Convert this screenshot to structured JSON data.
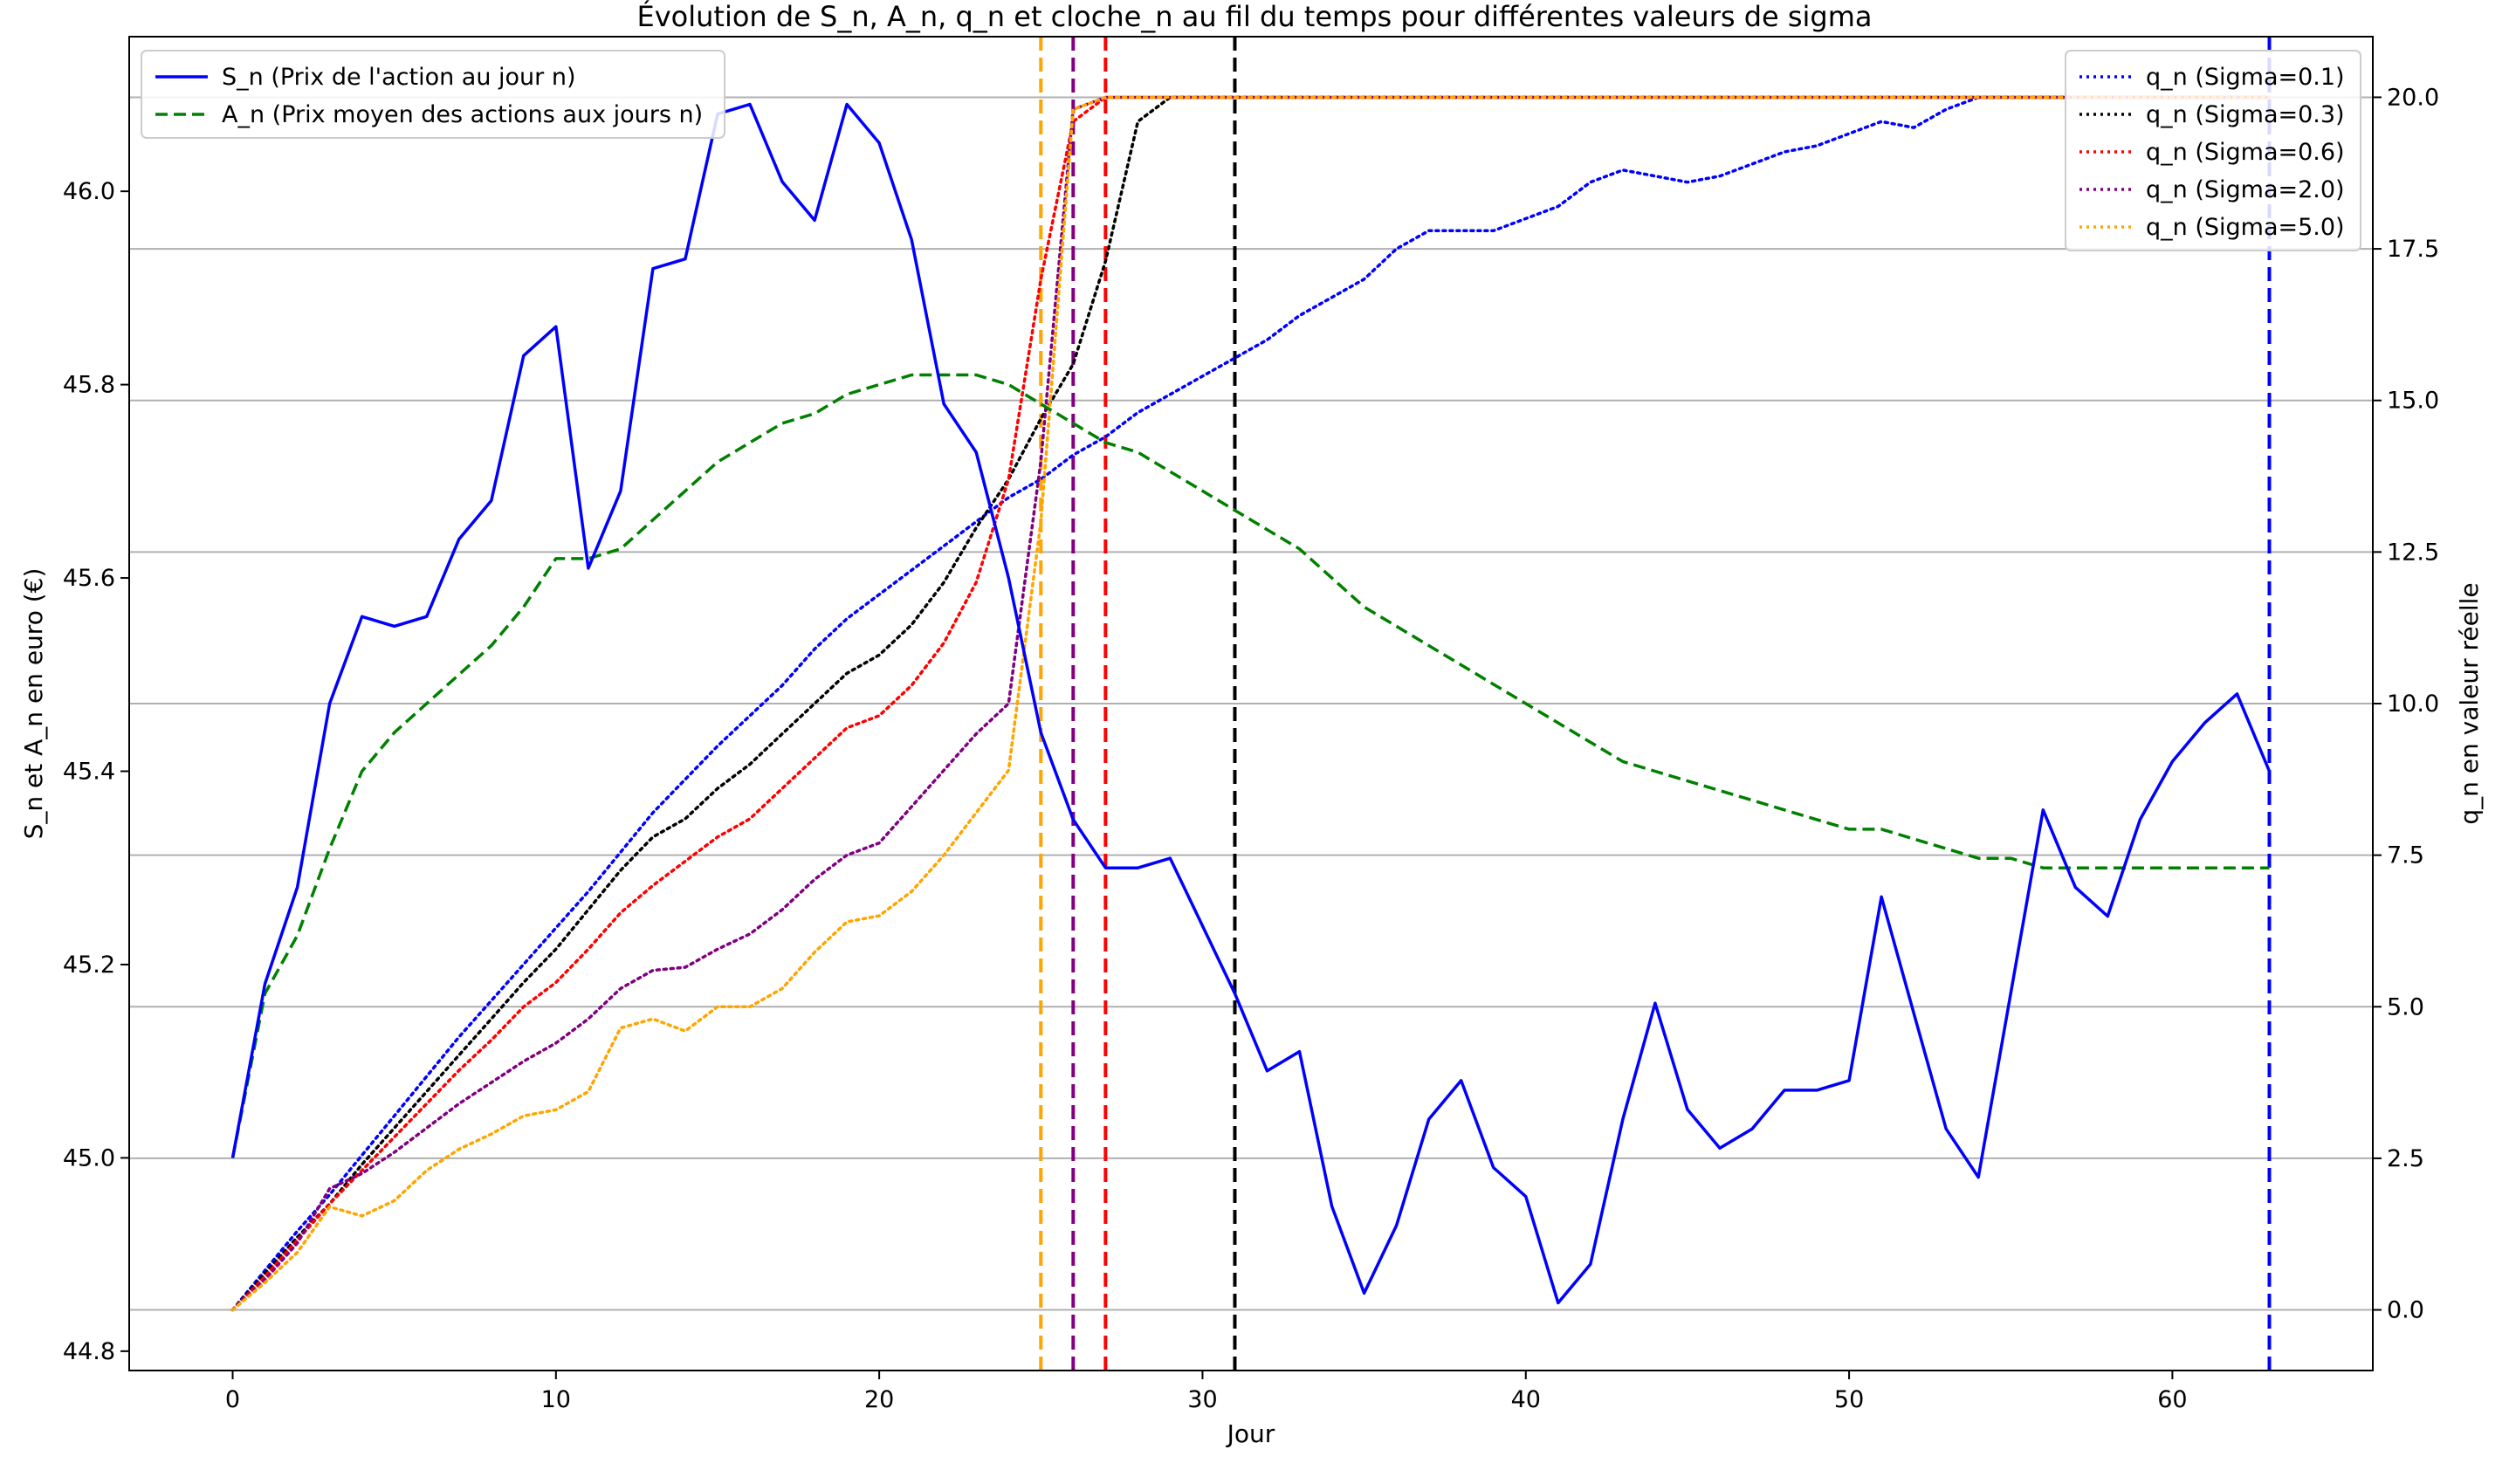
{
  "chart_data": {
    "type": "line",
    "title": "Évolution de S_n, A_n, q_n et cloche_n au fil du temps pour différentes valeurs de sigma",
    "xlabel": "Jour",
    "ylabel_left": "S_n et A_n en euro (€)",
    "ylabel_right": "q_n en valeur réelle",
    "xlim": [
      -3.2,
      66.2
    ],
    "ylim_left": [
      44.78,
      46.16
    ],
    "ylim_right": [
      -1.0,
      21.0
    ],
    "x_ticks": [
      0,
      10,
      20,
      30,
      40,
      50,
      60
    ],
    "y_ticks_left": [
      44.8,
      45.0,
      45.2,
      45.4,
      45.6,
      45.8,
      46.0
    ],
    "y_ticks_right": [
      0.0,
      2.5,
      5.0,
      7.5,
      10.0,
      12.5,
      15.0,
      17.5,
      20.0
    ],
    "grid": "horizontal lines at right-axis ticks",
    "legend_left_placement": "top-left",
    "legend_right_placement": "top-right",
    "colors": {
      "S_n": "#0000ff",
      "A_n": "#008000",
      "sigma_0_1": "#0000ff",
      "sigma_0_3": "#000000",
      "sigma_0_6": "#ff0000",
      "sigma_2_0": "#800080",
      "sigma_5_0": "#ffa500",
      "right_axis": "#ff0000",
      "grid": "#b0b0b0"
    },
    "legend_left": [
      {
        "label": "S_n (Prix de l'action au jour n)",
        "series": "S_n"
      },
      {
        "label": "A_n (Prix moyen des actions aux jours n)",
        "series": "A_n"
      }
    ],
    "legend_right": [
      {
        "label": "q_n (Sigma=0.1)",
        "series": "sigma_0_1"
      },
      {
        "label": "q_n (Sigma=0.3)",
        "series": "sigma_0_3"
      },
      {
        "label": "q_n (Sigma=0.6)",
        "series": "sigma_0_6"
      },
      {
        "label": "q_n (Sigma=2.0)",
        "series": "sigma_2_0"
      },
      {
        "label": "q_n (Sigma=5.0)",
        "series": "sigma_5_0"
      }
    ],
    "left_series": [
      {
        "key": "S_n",
        "axis": "left",
        "dash": "solid",
        "values": [
          45.0,
          45.18,
          45.28,
          45.47,
          45.56,
          45.55,
          45.56,
          45.64,
          45.68,
          45.83,
          45.86,
          45.61,
          45.69,
          45.92,
          45.93,
          46.08,
          46.09,
          46.01,
          45.97,
          46.09,
          46.05,
          45.95,
          45.78,
          45.73,
          45.6,
          45.44,
          45.35,
          45.3,
          45.3,
          45.31,
          45.24,
          45.17,
          45.09,
          45.11,
          44.95,
          44.86,
          44.93,
          45.04,
          45.08,
          44.99,
          44.96,
          44.85,
          44.89,
          45.04,
          45.16,
          45.05,
          45.01,
          45.03,
          45.07,
          45.07,
          45.08,
          45.27,
          45.15,
          45.03,
          44.98,
          45.17,
          45.36,
          45.28,
          45.25,
          45.35,
          45.41,
          45.45,
          45.48,
          45.4
        ]
      },
      {
        "key": "A_n",
        "axis": "left",
        "dash": "dashed",
        "values": [
          45.0,
          45.17,
          45.23,
          45.32,
          45.4,
          45.44,
          45.47,
          45.5,
          45.53,
          45.57,
          45.62,
          45.62,
          45.63,
          45.66,
          45.69,
          45.72,
          45.74,
          45.76,
          45.77,
          45.79,
          45.8,
          45.81,
          45.81,
          45.81,
          45.8,
          45.78,
          45.76,
          45.74,
          45.73,
          45.71,
          45.69,
          45.67,
          45.65,
          45.63,
          45.6,
          45.57,
          45.55,
          45.53,
          45.51,
          45.49,
          45.47,
          45.45,
          45.43,
          45.41,
          45.4,
          45.39,
          45.38,
          45.37,
          45.36,
          45.35,
          45.34,
          45.34,
          45.33,
          45.32,
          45.31,
          45.31,
          45.3,
          45.3,
          45.3,
          45.3,
          45.3,
          45.3,
          45.3,
          45.3
        ]
      },
      {
        "key": "sigma_0_1",
        "axis": "right",
        "dash": "dotted",
        "values": [
          0.0,
          0.65,
          1.3,
          1.9,
          2.55,
          3.2,
          3.85,
          4.5,
          5.1,
          5.7,
          6.3,
          6.9,
          7.55,
          8.2,
          8.75,
          9.3,
          9.8,
          10.3,
          10.9,
          11.4,
          11.8,
          12.2,
          12.6,
          13.0,
          13.4,
          13.7,
          14.1,
          14.4,
          14.8,
          15.1,
          15.4,
          15.7,
          16.0,
          16.4,
          16.7,
          17.0,
          17.5,
          17.8,
          17.8,
          17.8,
          18.0,
          18.2,
          18.6,
          18.8,
          18.7,
          18.6,
          18.7,
          18.9,
          19.1,
          19.2,
          19.4,
          19.6,
          19.5,
          19.8,
          20.0,
          20.0,
          20.0,
          20.0,
          20.0,
          20.0,
          20.0,
          20.0,
          20.0,
          20.0
        ]
      },
      {
        "key": "sigma_0_3",
        "axis": "right",
        "dash": "dotted",
        "values": [
          0.0,
          0.6,
          1.2,
          1.75,
          2.4,
          3.0,
          3.6,
          4.2,
          4.8,
          5.4,
          5.95,
          6.6,
          7.25,
          7.8,
          8.1,
          8.6,
          9.0,
          9.5,
          10.0,
          10.5,
          10.8,
          11.3,
          12.0,
          12.9,
          13.7,
          14.7,
          15.6,
          17.3,
          19.6,
          20.0,
          20.0,
          20.0,
          20.0,
          20.0,
          20.0,
          20.0,
          20.0,
          20.0,
          20.0,
          20.0,
          20.0,
          20.0,
          20.0,
          20.0,
          20.0,
          20.0,
          20.0,
          20.0,
          20.0,
          20.0,
          20.0,
          20.0,
          20.0,
          20.0,
          20.0,
          20.0,
          20.0,
          20.0,
          20.0,
          20.0,
          20.0,
          20.0,
          20.0,
          20.0
        ]
      },
      {
        "key": "sigma_0_6",
        "axis": "right",
        "dash": "dotted",
        "values": [
          0.0,
          0.55,
          1.15,
          1.75,
          2.3,
          2.85,
          3.4,
          3.95,
          4.45,
          5.0,
          5.4,
          5.95,
          6.55,
          7.0,
          7.4,
          7.8,
          8.1,
          8.6,
          9.1,
          9.6,
          9.8,
          10.3,
          11.0,
          12.0,
          13.7,
          17.0,
          19.6,
          20.0,
          20.0,
          20.0,
          20.0,
          20.0,
          20.0,
          20.0,
          20.0,
          20.0,
          20.0,
          20.0,
          20.0,
          20.0,
          20.0,
          20.0,
          20.0,
          20.0,
          20.0,
          20.0,
          20.0,
          20.0,
          20.0,
          20.0,
          20.0,
          20.0,
          20.0,
          20.0,
          20.0,
          20.0,
          20.0,
          20.0,
          20.0,
          20.0,
          20.0,
          20.0,
          20.0,
          20.0
        ]
      },
      {
        "key": "sigma_2_0",
        "axis": "right",
        "dash": "dotted",
        "values": [
          0.0,
          0.5,
          1.1,
          2.0,
          2.25,
          2.6,
          3.0,
          3.4,
          3.75,
          4.1,
          4.4,
          4.8,
          5.3,
          5.6,
          5.65,
          5.95,
          6.2,
          6.6,
          7.1,
          7.5,
          7.7,
          8.3,
          8.9,
          9.5,
          10.0,
          14.0,
          19.8,
          20.0,
          20.0,
          20.0,
          20.0,
          20.0,
          20.0,
          20.0,
          20.0,
          20.0,
          20.0,
          20.0,
          20.0,
          20.0,
          20.0,
          20.0,
          20.0,
          20.0,
          20.0,
          20.0,
          20.0,
          20.0,
          20.0,
          20.0,
          20.0,
          20.0,
          20.0,
          20.0,
          20.0,
          20.0,
          20.0,
          20.0,
          20.0,
          20.0,
          20.0,
          20.0,
          20.0,
          20.0
        ]
      },
      {
        "key": "sigma_5_0",
        "axis": "right",
        "dash": "dotted",
        "values": [
          0.0,
          0.45,
          0.95,
          1.7,
          1.55,
          1.8,
          2.3,
          2.65,
          2.9,
          3.2,
          3.3,
          3.6,
          4.65,
          4.8,
          4.6,
          5.0,
          5.0,
          5.3,
          5.9,
          6.4,
          6.5,
          6.9,
          7.5,
          8.2,
          8.9,
          13.0,
          19.8,
          20.0,
          20.0,
          20.0,
          20.0,
          20.0,
          20.0,
          20.0,
          20.0,
          20.0,
          20.0,
          20.0,
          20.0,
          20.0,
          20.0,
          20.0,
          20.0,
          20.0,
          20.0,
          20.0,
          20.0,
          20.0,
          20.0,
          20.0,
          20.0,
          20.0,
          20.0,
          20.0,
          20.0,
          20.0,
          20.0,
          20.0,
          20.0,
          20.0,
          20.0,
          20.0,
          20.0,
          20.0
        ]
      }
    ],
    "vertical_lines": [
      {
        "x": 25,
        "color": "#ffa500"
      },
      {
        "x": 26,
        "color": "#800080"
      },
      {
        "x": 27,
        "color": "#ff0000"
      },
      {
        "x": 31,
        "color": "#000000"
      },
      {
        "x": 63,
        "color": "#0000ff"
      }
    ]
  }
}
